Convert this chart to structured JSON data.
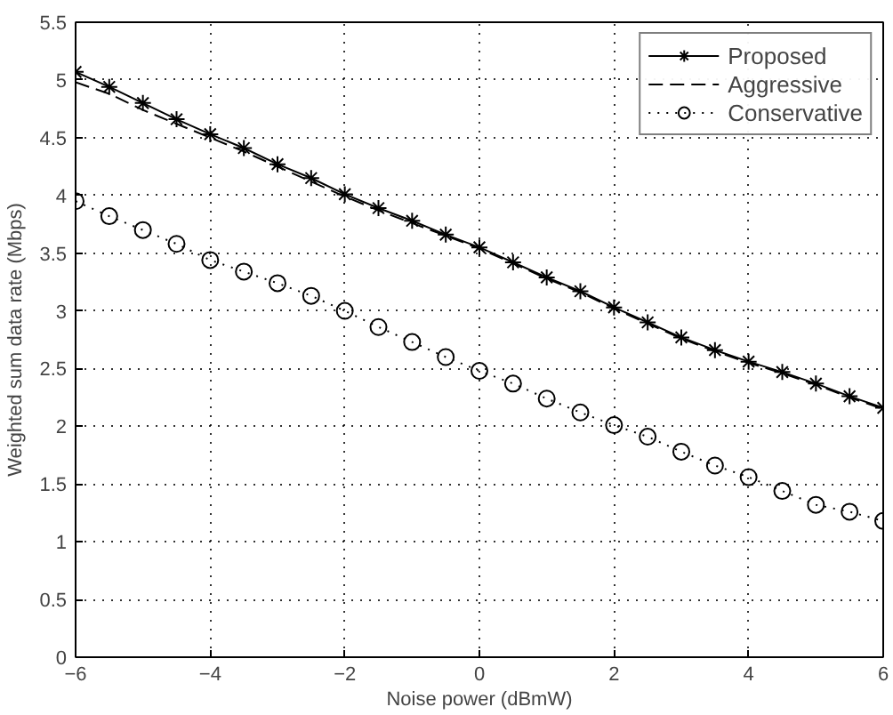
{
  "chart_data": {
    "type": "line",
    "xlabel": "Noise power (dBmW)",
    "ylabel": "Weighted sum data rate (Mbps)",
    "x": [
      -6,
      -5.5,
      -5,
      -4.5,
      -4,
      -3.5,
      -3,
      -2.5,
      -2,
      -1.5,
      -1,
      -0.5,
      0,
      0.5,
      1,
      1.5,
      2,
      2.5,
      3,
      3.5,
      4,
      4.5,
      5,
      5.5,
      6
    ],
    "series": [
      {
        "name": "Proposed",
        "color": "#000000",
        "line_style": "solid",
        "marker": "cross",
        "values": [
          5.07,
          4.94,
          4.8,
          4.66,
          4.53,
          4.41,
          4.27,
          4.15,
          4.01,
          3.89,
          3.78,
          3.66,
          3.55,
          3.42,
          3.29,
          3.17,
          3.03,
          2.9,
          2.77,
          2.66,
          2.56,
          2.47,
          2.37,
          2.26,
          2.16
        ]
      },
      {
        "name": "Aggressive",
        "color": "#000000",
        "line_style": "dashed",
        "marker": "none",
        "values": [
          4.98,
          4.88,
          4.74,
          4.62,
          4.5,
          4.38,
          4.25,
          4.12,
          3.99,
          3.87,
          3.76,
          3.65,
          3.54,
          3.41,
          3.28,
          3.16,
          3.02,
          2.89,
          2.76,
          2.65,
          2.55,
          2.46,
          2.36,
          2.25,
          2.15
        ]
      },
      {
        "name": "Conservative",
        "color": "#000000",
        "line_style": "dotted",
        "marker": "circle",
        "values": [
          3.95,
          3.82,
          3.7,
          3.58,
          3.44,
          3.34,
          3.24,
          3.13,
          3.0,
          2.86,
          2.73,
          2.6,
          2.48,
          2.37,
          2.24,
          2.12,
          2.01,
          1.91,
          1.78,
          1.66,
          1.56,
          1.44,
          1.32,
          1.26,
          1.18
        ]
      }
    ],
    "xlim": [
      -6,
      6
    ],
    "xticks": [
      {
        "value": -6,
        "label": "−6"
      },
      {
        "value": -4,
        "label": "−4"
      },
      {
        "value": -2,
        "label": "−2"
      },
      0,
      2,
      4,
      6
    ],
    "ylim": [
      0,
      5.5
    ],
    "yticks": [
      0,
      0.5,
      1,
      1.5,
      2,
      2.5,
      3,
      3.5,
      4,
      4.5,
      5,
      5.5
    ],
    "grid": true,
    "legend": "top right"
  }
}
